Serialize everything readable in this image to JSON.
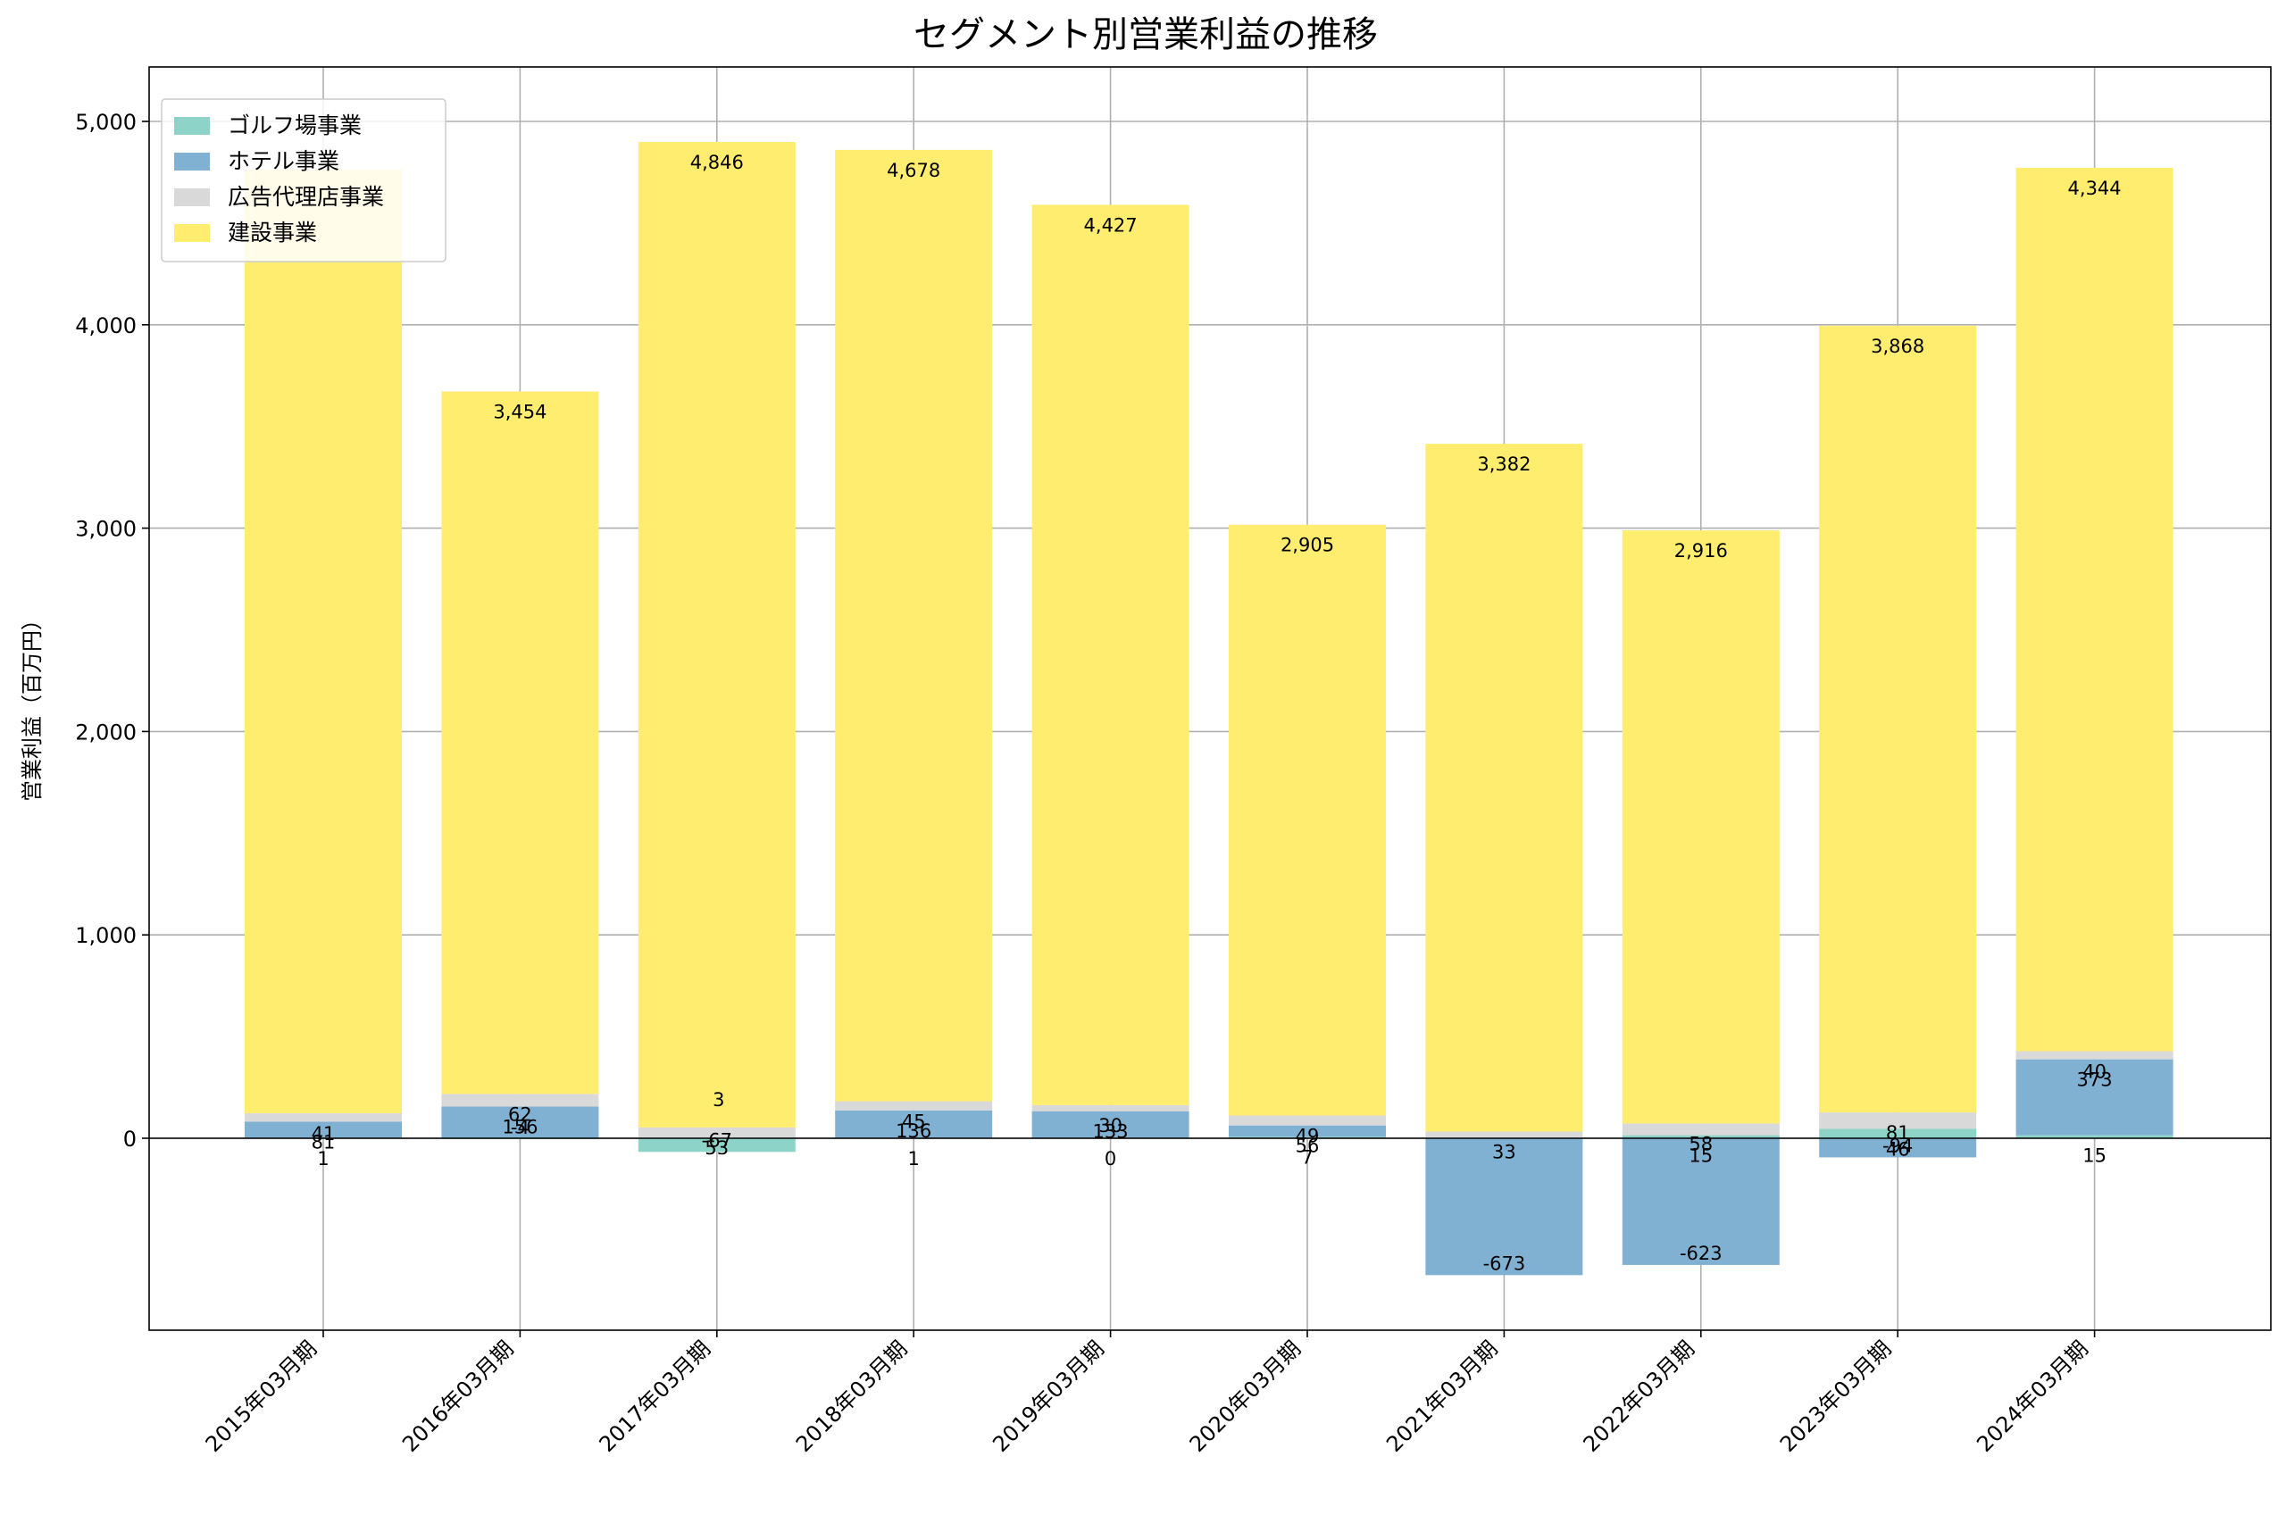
{
  "chart_data": {
    "type": "bar",
    "stacked": true,
    "title": "セグメント別営業利益の推移",
    "xlabel": "",
    "ylabel": "営業利益（百万円）",
    "ylim": [
      -950,
      5150
    ],
    "yticks": [
      0,
      1000,
      2000,
      3000,
      4000,
      5000
    ],
    "ytick_labels": [
      "0",
      "1,000",
      "2,000",
      "3,000",
      "4,000",
      "5,000"
    ],
    "grid": true,
    "legend_position": "top-left",
    "categories": [
      "2015年03月期",
      "2016年03月期",
      "2017年03月期",
      "2018年03月期",
      "2019年03月期",
      "2020年03月期",
      "2021年03月期",
      "2022年03月期",
      "2023年03月期",
      "2024年03月期"
    ],
    "series": [
      {
        "name": "ゴルフ場事業",
        "color": "#8dd3c7",
        "values": [
          1,
          -4,
          -67,
          1,
          0,
          7,
          0,
          15,
          46,
          15
        ],
        "labels": [
          "1",
          "-4",
          "-67",
          "1",
          "0",
          "7",
          "",
          "15",
          "46",
          "15"
        ]
      },
      {
        "name": "ホテル事業",
        "color": "#80b1d3",
        "values": [
          81,
          156,
          0,
          136,
          133,
          56,
          -673,
          -623,
          -94,
          373
        ],
        "labels": [
          "81",
          "156",
          "",
          "136",
          "133",
          "56",
          "-673",
          "-623",
          "-94",
          "373"
        ]
      },
      {
        "name": "広告代理店事業",
        "color": "#d9d9d9",
        "values": [
          41,
          62,
          53,
          45,
          30,
          49,
          33,
          58,
          81,
          40
        ],
        "labels": [
          "41",
          "62",
          "53",
          "45",
          "30",
          "49",
          "33",
          "58",
          "81",
          "40"
        ]
      },
      {
        "name": "建設事業",
        "color": "#ffed6f",
        "values": [
          4640,
          3454,
          4846,
          4678,
          4427,
          2905,
          3382,
          2916,
          3868,
          4344
        ],
        "labels": [
          "",
          "3,454",
          "4,846",
          "4,678",
          "4,427",
          "2,905",
          "3,382",
          "2,916",
          "3,868",
          "4,344"
        ]
      }
    ],
    "extra_labels": [
      {
        "category": "2017年03月期",
        "text": "3"
      }
    ]
  }
}
